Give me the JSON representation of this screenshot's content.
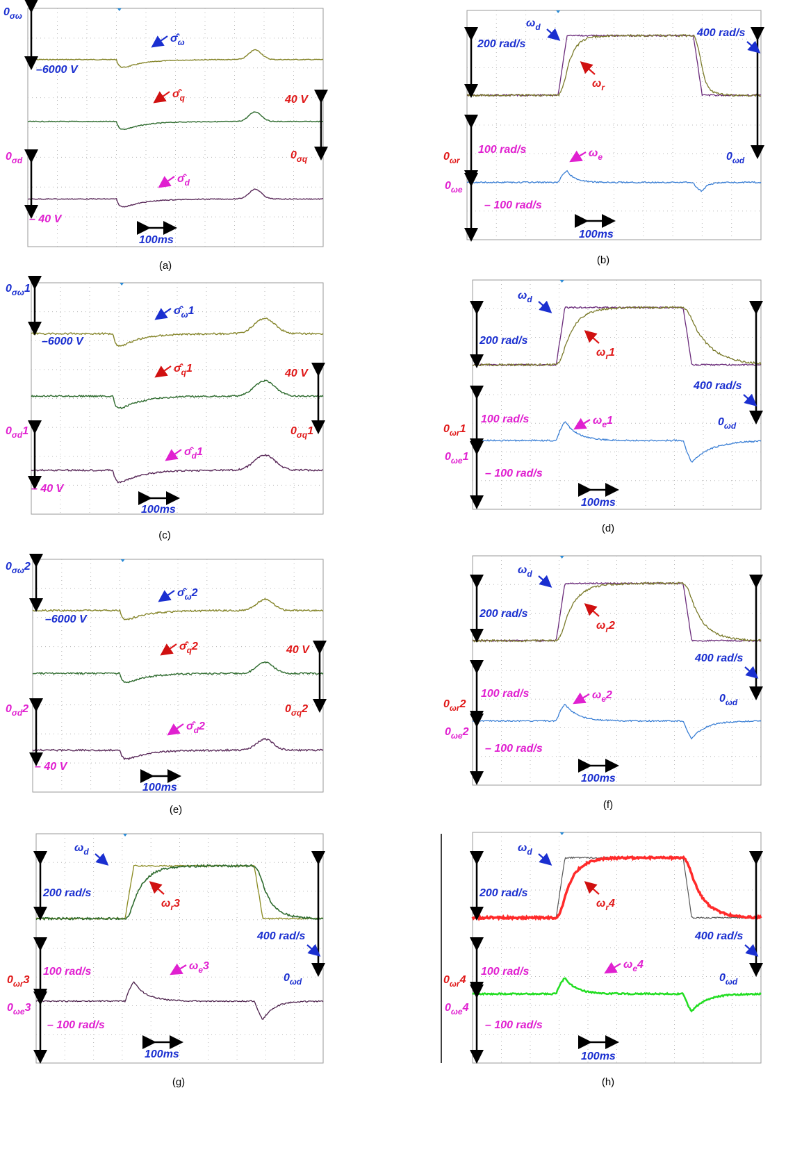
{
  "panels": [
    {
      "caption": "(a)",
      "labels": [
        {
          "t": "0",
          "s": "σω"
        },
        {
          "t": "σ̂",
          "s": "ω"
        },
        {
          "t": "–6000 V"
        },
        {
          "t": "σ̂",
          "s": "q"
        },
        {
          "t": "40 V"
        },
        {
          "t": "0",
          "s": "σq"
        },
        {
          "t": "0",
          "s": "σd"
        },
        {
          "t": "σ̂",
          "s": "d"
        },
        {
          "t": "– 40 V"
        },
        {
          "t": "100ms"
        }
      ]
    },
    {
      "caption": "(b)",
      "labels": [
        {
          "t": "ω",
          "s": "d"
        },
        {
          "t": "200 rad/s"
        },
        {
          "t": "ω",
          "s": "r"
        },
        {
          "t": "400 rad/s"
        },
        {
          "t": "100 rad/s"
        },
        {
          "t": "ω",
          "s": "e"
        },
        {
          "t": "0",
          "s": "ωr"
        },
        {
          "t": "0",
          "s": "ωd"
        },
        {
          "t": "0",
          "s": "ωe"
        },
        {
          "t": "– 100 rad/s"
        },
        {
          "t": "100ms"
        }
      ]
    },
    {
      "caption": "(c)",
      "labels": [
        {
          "t": "0",
          "s": "σω",
          "a": "1"
        },
        {
          "t": "σ̂",
          "s": "ω",
          "a": "1"
        },
        {
          "t": "–6000 V"
        },
        {
          "t": "σ̂",
          "s": "q",
          "a": "1"
        },
        {
          "t": "40 V"
        },
        {
          "t": "0",
          "s": "σq",
          "a": "1"
        },
        {
          "t": "0",
          "s": "σd",
          "a": "1"
        },
        {
          "t": "σ̂",
          "s": "d",
          "a": "1"
        },
        {
          "t": "– 40 V"
        },
        {
          "t": "100ms"
        }
      ]
    },
    {
      "caption": "(d)",
      "labels": [
        {
          "t": "ω",
          "s": "d"
        },
        {
          "t": "200 rad/s"
        },
        {
          "t": "ω",
          "s": "r",
          "a": "1"
        },
        {
          "t": "400 rad/s"
        },
        {
          "t": "100 rad/s"
        },
        {
          "t": "ω",
          "s": "e",
          "a": "1"
        },
        {
          "t": "0",
          "s": "ωr",
          "a": "1"
        },
        {
          "t": "0",
          "s": "ωd"
        },
        {
          "t": "0",
          "s": "ωe",
          "a": "1"
        },
        {
          "t": "– 100 rad/s"
        },
        {
          "t": "100ms"
        }
      ]
    },
    {
      "caption": "(e)",
      "labels": [
        {
          "t": "0",
          "s": "σω",
          "a": "2"
        },
        {
          "t": "σ̂",
          "s": "ω",
          "a": "2"
        },
        {
          "t": "–6000 V"
        },
        {
          "t": "σ̂",
          "s": "q",
          "a": "2"
        },
        {
          "t": "40 V"
        },
        {
          "t": "0",
          "s": "σq",
          "a": "2"
        },
        {
          "t": "0",
          "s": "σd",
          "a": "2"
        },
        {
          "t": "σ̂",
          "s": "d",
          "a": "2"
        },
        {
          "t": "– 40 V"
        },
        {
          "t": "100ms"
        }
      ]
    },
    {
      "caption": "(f)",
      "labels": [
        {
          "t": "ω",
          "s": "d"
        },
        {
          "t": "200 rad/s"
        },
        {
          "t": "ω",
          "s": "r",
          "a": "2"
        },
        {
          "t": "400 rad/s"
        },
        {
          "t": "100 rad/s"
        },
        {
          "t": "ω",
          "s": "e",
          "a": "2"
        },
        {
          "t": "0",
          "s": "ωr",
          "a": "2"
        },
        {
          "t": "0",
          "s": "ωd"
        },
        {
          "t": "0",
          "s": "ωe",
          "a": "2"
        },
        {
          "t": "– 100 rad/s"
        },
        {
          "t": "100ms"
        }
      ]
    },
    {
      "caption": "(g)",
      "labels": [
        {
          "t": "ω",
          "s": "d"
        },
        {
          "t": "200 rad/s"
        },
        {
          "t": "ω",
          "s": "r",
          "a": "3"
        },
        {
          "t": "400 rad/s"
        },
        {
          "t": "100 rad/s"
        },
        {
          "t": "ω",
          "s": "e",
          "a": "3"
        },
        {
          "t": "0",
          "s": "ωr",
          "a": "3"
        },
        {
          "t": "0",
          "s": "ωd"
        },
        {
          "t": "0",
          "s": "ωe",
          "a": "3"
        },
        {
          "t": "– 100 rad/s"
        },
        {
          "t": "100ms"
        }
      ]
    },
    {
      "caption": "(h)",
      "labels": [
        {
          "t": "ω",
          "s": "d"
        },
        {
          "t": "200 rad/s"
        },
        {
          "t": "ω",
          "s": "r",
          "a": "4"
        },
        {
          "t": "400 rad/s"
        },
        {
          "t": "100 rad/s"
        },
        {
          "t": "ω",
          "s": "e",
          "a": "4"
        },
        {
          "t": "0",
          "s": "ωr",
          "a": "4"
        },
        {
          "t": "0",
          "s": "ωd"
        },
        {
          "t": "0",
          "s": "ωe",
          "a": "4"
        },
        {
          "t": "– 100 rad/s"
        },
        {
          "t": "100ms"
        }
      ]
    }
  ]
}
